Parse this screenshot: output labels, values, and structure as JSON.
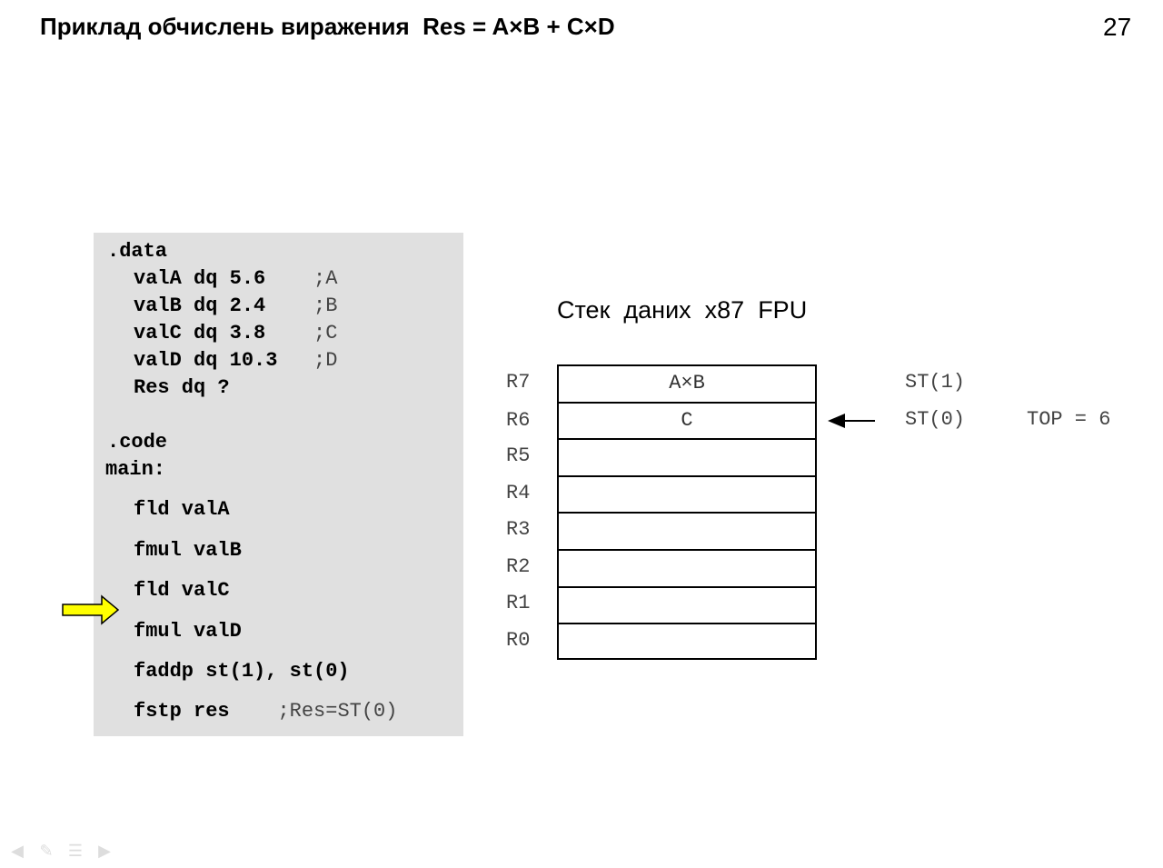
{
  "slide": {
    "title": "Приклад обчислень виражения  Res = A×B + C×D",
    "page_number": "27"
  },
  "code": {
    "data_section": ".data",
    "decls": [
      {
        "code": "valA dq 5.6    ",
        "comment": ";A"
      },
      {
        "code": "valB dq 2.4    ",
        "comment": ";B"
      },
      {
        "code": "valC dq 3.8    ",
        "comment": ";C"
      },
      {
        "code": "valD dq 10.3   ",
        "comment": ";D"
      },
      {
        "code": "Res dq ?",
        "comment": ""
      }
    ],
    "code_section": ".code",
    "main_label": "main:",
    "instructions": [
      {
        "code": "fld valA",
        "comment": ""
      },
      {
        "code": "fmul valB",
        "comment": ""
      },
      {
        "code": "fld valC",
        "comment": ""
      },
      {
        "code": "fmul valD",
        "comment": ""
      },
      {
        "code": "faddp st(1), st(0)",
        "comment": ""
      },
      {
        "code": "fstp res    ",
        "comment": ";Res=ST(0)"
      }
    ],
    "current_instruction_index": 3,
    "arrow_color": "#ffff00"
  },
  "stack": {
    "title": "Стек  даних  x87  FPU",
    "registers": [
      {
        "name": "R7",
        "value": "A×B"
      },
      {
        "name": "R6",
        "value": "C"
      },
      {
        "name": "R5",
        "value": ""
      },
      {
        "name": "R4",
        "value": ""
      },
      {
        "name": "R3",
        "value": ""
      },
      {
        "name": "R2",
        "value": ""
      },
      {
        "name": "R1",
        "value": ""
      },
      {
        "name": "R0",
        "value": ""
      }
    ],
    "st1_label": "ST(1)",
    "st0_label": "ST(0)",
    "top_label": "TOP = 6"
  },
  "nav_icons": [
    "back-icon",
    "pen-icon",
    "menu-icon",
    "forward-icon"
  ]
}
